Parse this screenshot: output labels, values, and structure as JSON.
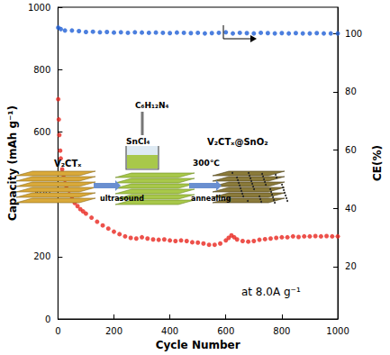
{
  "chart_data": {
    "type": "scatter",
    "x_label": "Cycle Number",
    "y_label": "Capacity (mAh g⁻¹)",
    "y2_label": "CE(%)",
    "annotations": [
      "at 8.0A g⁻¹",
      "V₂CTₓ",
      "C₆H₁₂N₄",
      "SnCl₄",
      "ultrasound",
      "300℃",
      "annealing",
      "V₂CTₓ@SnO₂"
    ],
    "xlim": [
      0,
      1000
    ],
    "xticks": [
      0,
      200,
      400,
      600,
      800,
      1000
    ],
    "ylim": [
      0,
      1000
    ],
    "yticks": [
      0,
      200,
      400,
      600,
      800,
      1000
    ],
    "y2lim": [
      2,
      109
    ],
    "y2ticks": [
      20,
      40,
      60,
      80,
      100
    ],
    "grid": false,
    "series": [
      {
        "color": "#e8261e",
        "marker": "circle",
        "x": [
          1,
          3,
          5,
          8,
          10,
          15,
          20,
          25,
          30,
          40,
          50,
          60,
          70,
          80,
          90,
          100,
          120,
          140,
          160,
          180,
          200,
          220,
          240,
          260,
          280,
          300,
          320,
          340,
          360,
          380,
          400,
          420,
          440,
          460,
          480,
          500,
          520,
          540,
          560,
          580,
          600,
          610,
          620,
          630,
          640,
          660,
          680,
          700,
          720,
          740,
          760,
          780,
          800,
          820,
          840,
          860,
          880,
          900,
          920,
          940,
          960,
          980,
          1000
        ],
        "values": [
          705,
          640,
          590,
          540,
          515,
          480,
          455,
          435,
          420,
          400,
          385,
          372,
          362,
          352,
          345,
          338,
          325,
          312,
          300,
          290,
          280,
          272,
          265,
          260,
          258,
          262,
          258,
          255,
          254,
          255,
          252,
          250,
          252,
          250,
          246,
          245,
          242,
          238,
          238,
          242,
          252,
          260,
          268,
          262,
          255,
          250,
          248,
          250,
          254,
          256,
          258,
          260,
          262,
          262,
          265,
          263,
          265,
          265,
          266,
          265,
          266,
          265,
          265
        ]
      },
      {
        "color": "#1f5fd6",
        "marker": "circle",
        "axis": "y2",
        "x": [
          1,
          10,
          25,
          50,
          75,
          100,
          125,
          150,
          175,
          200,
          225,
          250,
          275,
          300,
          325,
          350,
          375,
          400,
          425,
          450,
          475,
          500,
          525,
          550,
          575,
          600,
          625,
          650,
          675,
          700,
          725,
          750,
          775,
          800,
          825,
          850,
          875,
          900,
          925,
          950,
          975,
          1000
        ],
        "values": [
          102,
          101.5,
          101,
          101,
          100.8,
          100.5,
          100.6,
          100.4,
          100.5,
          100.3,
          100.4,
          100.2,
          100.4,
          100.3,
          100.2,
          100.3,
          100.2,
          100.1,
          100.3,
          100.2,
          100.1,
          100.2,
          100,
          100.1,
          100.2,
          100.4,
          100,
          100.2,
          100.1,
          100,
          100.2,
          100.1,
          100,
          100.1,
          100,
          100.1,
          100,
          100,
          100.1,
          100,
          100,
          100
        ]
      }
    ]
  }
}
